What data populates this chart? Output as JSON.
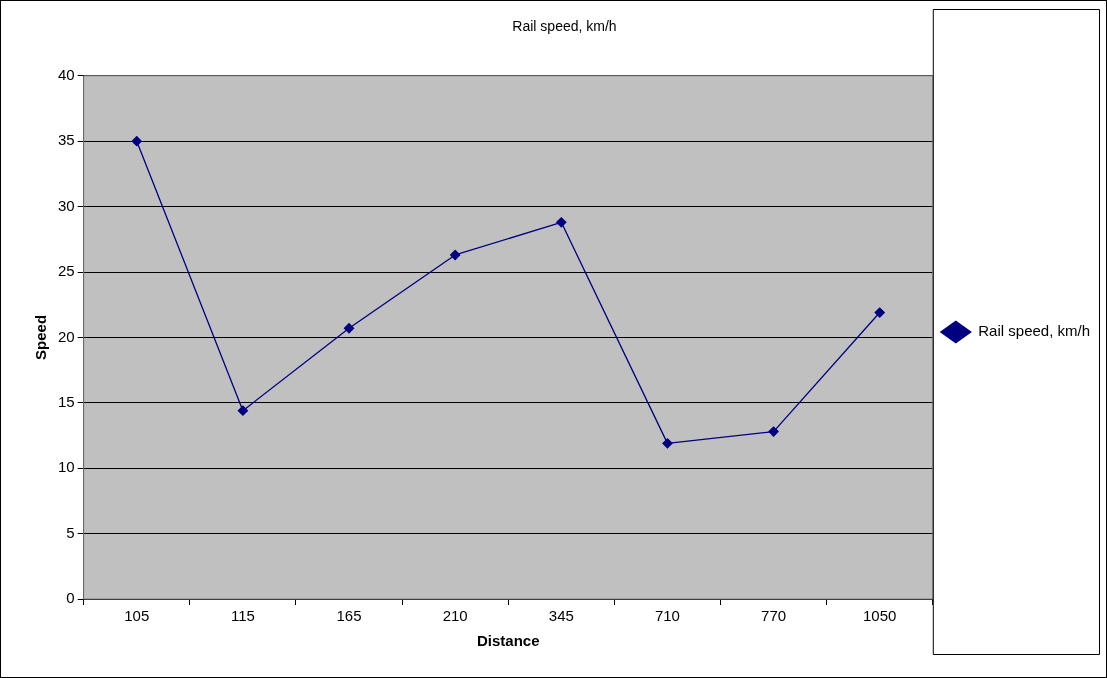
{
  "chart_data": {
    "type": "line",
    "title": "Rail speed, km/h",
    "xlabel": "Distance",
    "ylabel": "Speed",
    "categories": [
      "105",
      "115",
      "165",
      "210",
      "345",
      "710",
      "770",
      "1050"
    ],
    "series": [
      {
        "name": "Rail speed, km/h",
        "color": "#000080",
        "values": [
          35.0,
          14.4,
          20.7,
          26.3,
          28.8,
          11.9,
          12.8,
          21.9
        ]
      }
    ],
    "ylim": [
      0,
      40
    ],
    "yticks": [
      0,
      5,
      10,
      15,
      20,
      25,
      30,
      35,
      40
    ],
    "grid": "y",
    "legend": "right",
    "marker": "diamond",
    "line_style": "solid"
  }
}
